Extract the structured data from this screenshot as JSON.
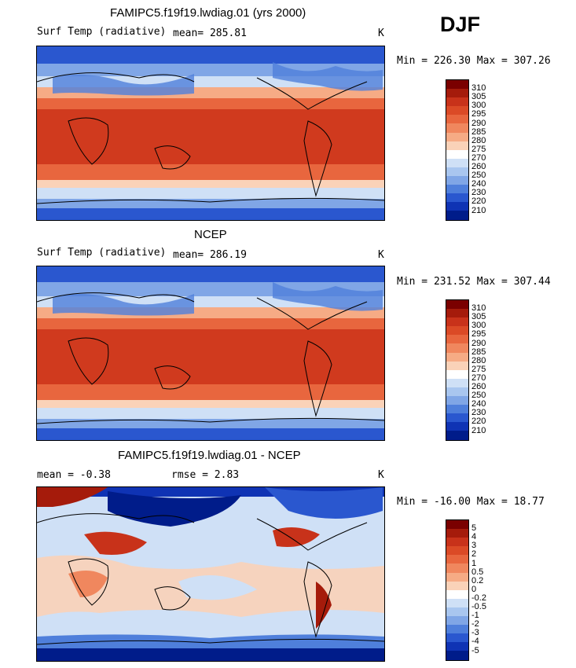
{
  "season": "DJF",
  "panels": [
    {
      "title": "FAMIPC5.f19f19.lwdiag.01 (yrs 2000)",
      "left_label": "Surf Temp (radiative)",
      "stat": "mean= 285.81",
      "stat2": "",
      "units": "K",
      "minmax": "Min = 226.30 Max = 307.26",
      "colorbar": {
        "labels": [
          "310",
          "305",
          "300",
          "295",
          "290",
          "285",
          "280",
          "275",
          "270",
          "260",
          "250",
          "240",
          "230",
          "220",
          "210"
        ],
        "colors": [
          "#7a0000",
          "#a51b0b",
          "#c8321a",
          "#db4a26",
          "#e8663e",
          "#f0875e",
          "#f6ab85",
          "#fad2b8",
          "#ffffff",
          "#cfe0f6",
          "#a9c6ef",
          "#80a6e6",
          "#4f7fdb",
          "#2a57cf",
          "#0f33b4",
          "#001c8a"
        ]
      }
    },
    {
      "title": "NCEP",
      "left_label": "Surf Temp (radiative)",
      "stat": "mean= 286.19",
      "stat2": "",
      "units": "K",
      "minmax": "Min = 231.52 Max = 307.44",
      "colorbar": {
        "labels": [
          "310",
          "305",
          "300",
          "295",
          "290",
          "285",
          "280",
          "275",
          "270",
          "260",
          "250",
          "240",
          "230",
          "220",
          "210"
        ],
        "colors": [
          "#7a0000",
          "#a51b0b",
          "#c8321a",
          "#db4a26",
          "#e8663e",
          "#f0875e",
          "#f6ab85",
          "#fad2b8",
          "#ffffff",
          "#cfe0f6",
          "#a9c6ef",
          "#80a6e6",
          "#4f7fdb",
          "#2a57cf",
          "#0f33b4",
          "#001c8a"
        ]
      }
    },
    {
      "title": "FAMIPC5.f19f19.lwdiag.01 - NCEP",
      "left_label": "mean =  -0.38",
      "stat": "rmse =   2.83",
      "stat2": "",
      "units": "K",
      "minmax": "Min = -16.00 Max =  18.77",
      "colorbar": {
        "labels": [
          "5",
          "4",
          "3",
          "2",
          "1",
          "0.5",
          "0.2",
          "0",
          "-0.2",
          "-0.5",
          "-1",
          "-2",
          "-3",
          "-4",
          "-5"
        ],
        "colors": [
          "#7a0000",
          "#a51b0b",
          "#c8321a",
          "#db4a26",
          "#e8663e",
          "#f0875e",
          "#f6ab85",
          "#fad2b8",
          "#ffffff",
          "#cfe0f6",
          "#a9c6ef",
          "#80a6e6",
          "#4f7fdb",
          "#2a57cf",
          "#0f33b4",
          "#001c8a"
        ]
      }
    }
  ]
}
